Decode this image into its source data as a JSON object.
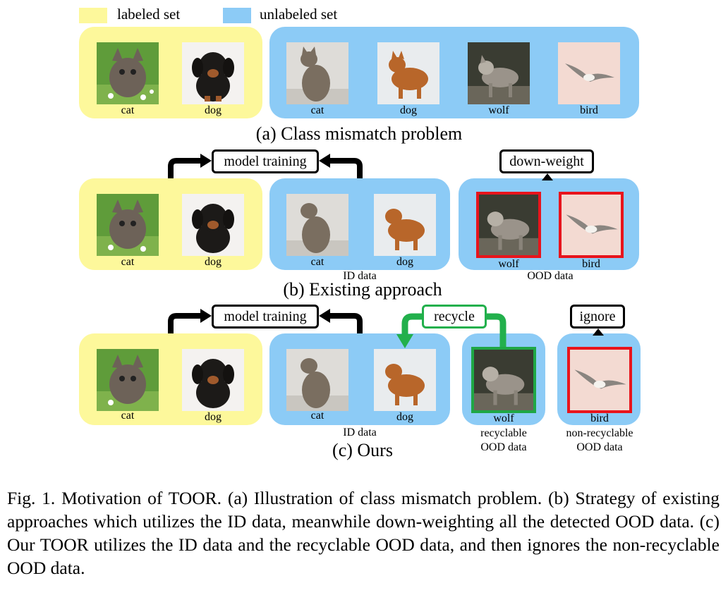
{
  "legend": {
    "labeled": "labeled set",
    "unlabeled": "unlabeled set"
  },
  "colors": {
    "labeled": "#fdf89b",
    "unlabeled": "#8ccbf6",
    "ood_frame": "#e8141c",
    "recycle": "#22b04c"
  },
  "row_a": {
    "caption": "(a) Class mismatch problem",
    "labeled": [
      "cat",
      "dog"
    ],
    "unlabeled": [
      "cat",
      "dog",
      "wolf",
      "bird"
    ]
  },
  "row_b": {
    "caption": "(b) Existing approach",
    "model_training": "model training",
    "down_weight": "down-weight",
    "labeled": [
      "cat",
      "dog"
    ],
    "id": [
      "cat",
      "dog"
    ],
    "id_label": "ID data",
    "ood": [
      "wolf",
      "bird"
    ],
    "ood_label": "OOD data"
  },
  "row_c": {
    "caption": "(c) Ours",
    "model_training": "model training",
    "recycle": "recycle",
    "ignore": "ignore",
    "labeled": [
      "cat",
      "dog"
    ],
    "id": [
      "cat",
      "dog"
    ],
    "id_label": "ID data",
    "wolf": "wolf",
    "recyclable_1": "recyclable",
    "recyclable_2": "OOD data",
    "bird": "bird",
    "nonrecyclable_1": "non-recyclable",
    "nonrecyclable_2": "OOD data"
  },
  "figure_caption": "Fig. 1.  Motivation of TOOR. (a) Illustration of class mismatch problem. (b) Strategy of existing approaches which utilizes the ID data, meanwhile down-weighting all the detected OOD data. (c) Our TOOR utilizes the ID data and the recyclable OOD data, and then ignores the non-recyclable OOD data."
}
